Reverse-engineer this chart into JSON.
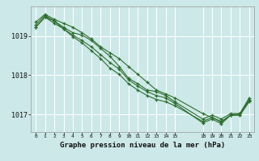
{
  "title": "Graphe pression niveau de la mer (hPa)",
  "bg_color": "#cce8e8",
  "grid_color": "#ffffff",
  "line_color": "#2d6e2d",
  "x_ticks": [
    0,
    1,
    2,
    3,
    4,
    5,
    6,
    7,
    8,
    9,
    10,
    11,
    12,
    13,
    14,
    15,
    18,
    19,
    20,
    21,
    22,
    23
  ],
  "x_tick_labels": [
    "0",
    "1",
    "2",
    "3",
    "4",
    "5",
    "6",
    "7",
    "8",
    "9",
    "10",
    "11",
    "12",
    "13",
    "14",
    "15",
    "18",
    "19",
    "20",
    "21",
    "22",
    "23"
  ],
  "ylim": [
    1016.55,
    1019.75
  ],
  "yticks": [
    1017,
    1018,
    1019
  ],
  "series": [
    [
      1019.35,
      1019.55,
      1019.42,
      1019.32,
      1019.22,
      1019.08,
      1018.92,
      1018.72,
      1018.57,
      1018.42,
      1018.22,
      1018.02,
      1017.82,
      1017.62,
      1017.52,
      1017.42,
      1017.02,
      1016.92,
      1016.82,
      1016.98,
      1017.02,
      1017.38
    ],
    [
      1019.22,
      1019.48,
      1019.38,
      1019.18,
      1019.02,
      1018.88,
      1018.72,
      1018.52,
      1018.32,
      1018.15,
      1017.88,
      1017.72,
      1017.58,
      1017.48,
      1017.42,
      1017.28,
      1016.78,
      1016.88,
      1016.76,
      1016.98,
      1016.98,
      1017.32
    ],
    [
      1019.28,
      1019.52,
      1019.38,
      1019.22,
      1019.08,
      1019.02,
      1018.88,
      1018.68,
      1018.48,
      1018.22,
      1017.92,
      1017.78,
      1017.62,
      1017.58,
      1017.48,
      1017.32,
      1016.88,
      1016.98,
      1016.88,
      1017.02,
      1017.02,
      1017.42
    ],
    [
      1019.22,
      1019.48,
      1019.32,
      1019.18,
      1018.98,
      1018.82,
      1018.62,
      1018.42,
      1018.18,
      1018.02,
      1017.78,
      1017.62,
      1017.48,
      1017.38,
      1017.32,
      1017.22,
      1016.82,
      1016.92,
      1016.8,
      1016.98,
      1016.98,
      1017.35
    ]
  ],
  "x_all": [
    0,
    1,
    2,
    3,
    4,
    5,
    6,
    7,
    8,
    9,
    10,
    11,
    12,
    13,
    14,
    15,
    18,
    19,
    20,
    21,
    22,
    23
  ]
}
